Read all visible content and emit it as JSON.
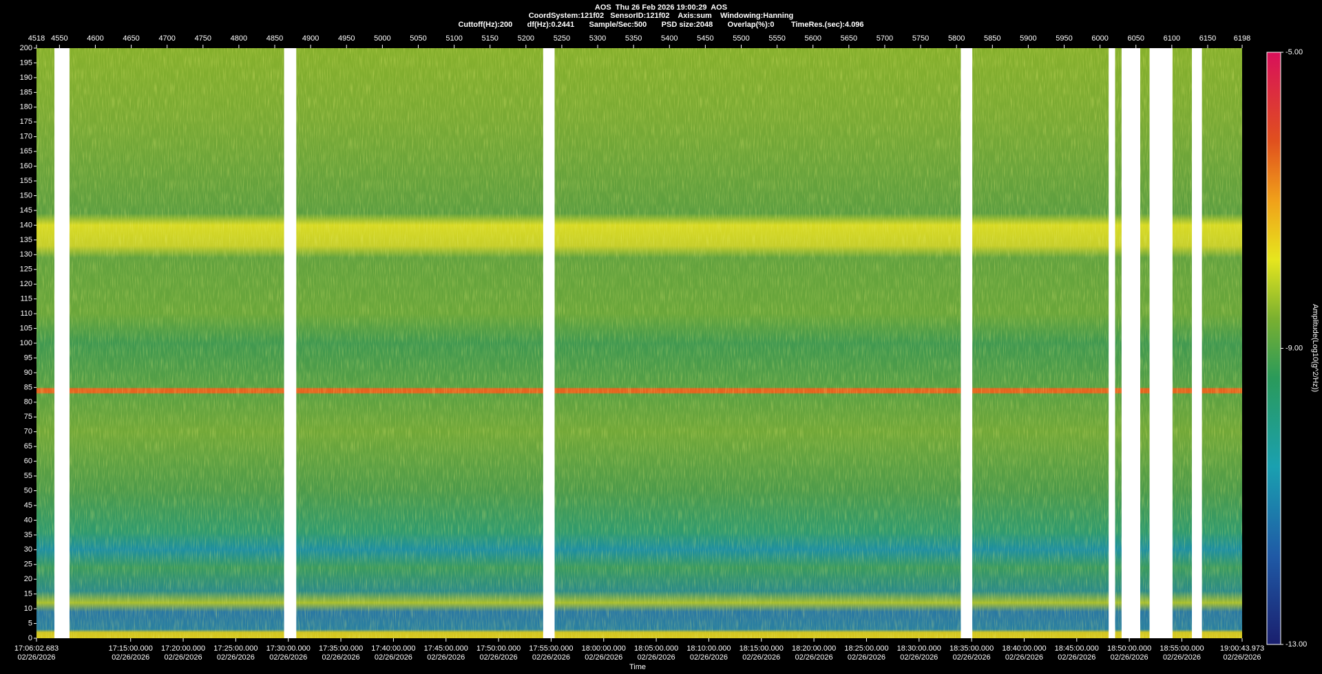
{
  "chart_data": {
    "type": "spectrogram",
    "title": "AOS  Thu 26 Feb 2026 19:00:29  AOS",
    "subtitle": "CoordSystem:121f02   SensorID:121f02    Axis:sum    Windowing:Hanning",
    "settings_line": "Cuttoff(Hz):200       df(Hz):0.2441       Sample/Sec:500       PSD size:2048       Overlap(%):0        TimeRes.(sec):4.096",
    "xlabel": "Time",
    "xlim": [
      4518,
      6198
    ],
    "xticks": [
      4518,
      4550,
      4600,
      4650,
      4700,
      4750,
      4800,
      4850,
      4900,
      4950,
      5000,
      5050,
      5100,
      5150,
      5200,
      5250,
      5300,
      5350,
      5400,
      5450,
      5500,
      5550,
      5600,
      5650,
      5700,
      5750,
      5800,
      5850,
      5900,
      5950,
      6000,
      6050,
      6100,
      6150,
      6198
    ],
    "timelim": [
      61562.683,
      68443.973
    ],
    "timeticks": [
      {
        "value": 61562.683,
        "label": [
          "17:06:02.683",
          "02/26/2026"
        ]
      },
      {
        "value": 62100,
        "label": [
          "17:15:00.000",
          "02/26/2026"
        ]
      },
      {
        "value": 62400,
        "label": [
          "17:20:00.000",
          "02/26/2026"
        ]
      },
      {
        "value": 62700,
        "label": [
          "17:25:00.000",
          "02/26/2026"
        ]
      },
      {
        "value": 63000,
        "label": [
          "17:30:00.000",
          "02/26/2026"
        ]
      },
      {
        "value": 63300,
        "label": [
          "17:35:00.000",
          "02/26/2026"
        ]
      },
      {
        "value": 63600,
        "label": [
          "17:40:00.000",
          "02/26/2026"
        ]
      },
      {
        "value": 63900,
        "label": [
          "17:45:00.000",
          "02/26/2026"
        ]
      },
      {
        "value": 64200,
        "label": [
          "17:50:00.000",
          "02/26/2026"
        ]
      },
      {
        "value": 64500,
        "label": [
          "17:55:00.000",
          "02/26/2026"
        ]
      },
      {
        "value": 64800,
        "label": [
          "18:00:00.000",
          "02/26/2026"
        ]
      },
      {
        "value": 65100,
        "label": [
          "18:05:00.000",
          "02/26/2026"
        ]
      },
      {
        "value": 65400,
        "label": [
          "18:10:00.000",
          "02/26/2026"
        ]
      },
      {
        "value": 65700,
        "label": [
          "18:15:00.000",
          "02/26/2026"
        ]
      },
      {
        "value": 66000,
        "label": [
          "18:20:00.000",
          "02/26/2026"
        ]
      },
      {
        "value": 66300,
        "label": [
          "18:25:00.000",
          "02/26/2026"
        ]
      },
      {
        "value": 66600,
        "label": [
          "18:30:00.000",
          "02/26/2026"
        ]
      },
      {
        "value": 66900,
        "label": [
          "18:35:00.000",
          "02/26/2026"
        ]
      },
      {
        "value": 67200,
        "label": [
          "18:40:00.000",
          "02/26/2026"
        ]
      },
      {
        "value": 67500,
        "label": [
          "18:45:00.000",
          "02/26/2026"
        ]
      },
      {
        "value": 67800,
        "label": [
          "18:50:00.000",
          "02/26/2026"
        ]
      },
      {
        "value": 68100,
        "label": [
          "18:55:00.000",
          "02/26/2026"
        ]
      },
      {
        "value": 68443.973,
        "label": [
          "19:00:43.973",
          "02/26/2026"
        ]
      }
    ],
    "ylim": [
      0,
      200
    ],
    "yticks": [
      0,
      5,
      10,
      15,
      20,
      25,
      30,
      35,
      40,
      45,
      50,
      55,
      60,
      65,
      70,
      75,
      80,
      85,
      90,
      95,
      100,
      105,
      110,
      115,
      120,
      125,
      130,
      135,
      140,
      145,
      150,
      155,
      160,
      165,
      170,
      175,
      180,
      185,
      190,
      195,
      200
    ],
    "gaps": [
      [
        4543,
        4564
      ],
      [
        4863,
        4880
      ],
      [
        5224,
        5240
      ],
      [
        5806,
        5822
      ],
      [
        6012,
        6021
      ],
      [
        6030,
        6056
      ],
      [
        6069,
        6101
      ],
      [
        6128,
        6142
      ]
    ],
    "clabel": "Amplitude(Log10(g^2/Hz))",
    "clim": [
      -13,
      -5
    ],
    "cticks": [
      {
        "value": -13,
        "label": "-13.00"
      },
      {
        "value": -9,
        "label": "-9.00"
      },
      {
        "value": -5,
        "label": "-5.00"
      }
    ]
  }
}
